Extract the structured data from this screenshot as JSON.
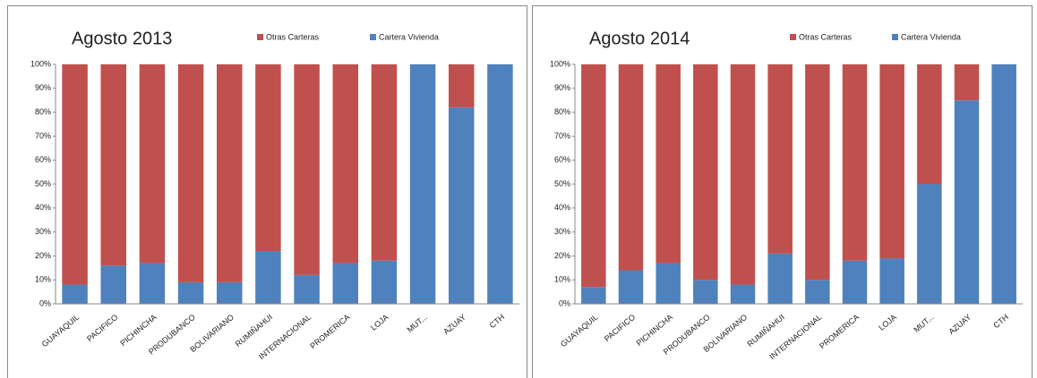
{
  "chart_data": [
    {
      "type": "bar",
      "stacked": true,
      "title": "Agosto 2013",
      "categories": [
        "GUAYAQUIL",
        "PACIFICO",
        "PICHINCHA",
        "PRODUBANCO",
        "BOLIVARIANO",
        "RUMIÑAHUI",
        "INTERNACIONAL",
        "PROMERICA",
        "LOJA",
        "MUT...",
        "AZUAY",
        "CTH"
      ],
      "series": [
        {
          "name": "Otras Carteras",
          "color": "#c0504d",
          "values": [
            92,
            84,
            83,
            91,
            91,
            78,
            88,
            83,
            82,
            0,
            18,
            0
          ]
        },
        {
          "name": "Cartera Vivienda",
          "color": "#4f81bd",
          "values": [
            8,
            16,
            17,
            9,
            9,
            22,
            12,
            17,
            18,
            100,
            82,
            100
          ]
        }
      ],
      "ylim": [
        0,
        100
      ],
      "yticks": [
        {
          "value": 0,
          "label": "0%"
        },
        {
          "value": 10,
          "label": "10%"
        },
        {
          "value": 20,
          "label": "20%"
        },
        {
          "value": 30,
          "label": "30%"
        },
        {
          "value": 40,
          "label": "40%"
        },
        {
          "value": 50,
          "label": "50%"
        },
        {
          "value": 60,
          "label": "60%"
        },
        {
          "value": 70,
          "label": "70%"
        },
        {
          "value": 80,
          "label": "80%"
        },
        {
          "value": 90,
          "label": "90%"
        },
        {
          "value": 100,
          "label": "100%"
        }
      ],
      "grid": false
    },
    {
      "type": "bar",
      "stacked": true,
      "title": "Agosto 2014",
      "categories": [
        "GUAYAQUIL",
        "PACIFICO",
        "PICHINCHA",
        "PRODUBANCO",
        "BOLIVARIANO",
        "RUMIÑAHUI",
        "INTERNACIONAL",
        "PROMERICA",
        "LOJA",
        "MUT...",
        "AZUAY",
        "CTH"
      ],
      "series": [
        {
          "name": "Otras Carteras",
          "color": "#c0504d",
          "values": [
            93,
            86,
            83,
            90,
            92,
            79,
            90,
            82,
            81,
            50,
            15,
            0
          ]
        },
        {
          "name": "Cartera Vivienda",
          "color": "#4f81bd",
          "values": [
            7,
            14,
            17,
            10,
            8,
            21,
            10,
            18,
            19,
            50,
            85,
            100
          ]
        }
      ],
      "ylim": [
        0,
        100
      ],
      "yticks": [
        {
          "value": 0,
          "label": "0%"
        },
        {
          "value": 10,
          "label": "10%"
        },
        {
          "value": 20,
          "label": "20%"
        },
        {
          "value": 30,
          "label": "30%"
        },
        {
          "value": 40,
          "label": "40%"
        },
        {
          "value": 50,
          "label": "50%"
        },
        {
          "value": 60,
          "label": "60%"
        },
        {
          "value": 70,
          "label": "70%"
        },
        {
          "value": 80,
          "label": "80%"
        },
        {
          "value": 90,
          "label": "90%"
        },
        {
          "value": 100,
          "label": "100%"
        }
      ],
      "grid": false
    }
  ]
}
